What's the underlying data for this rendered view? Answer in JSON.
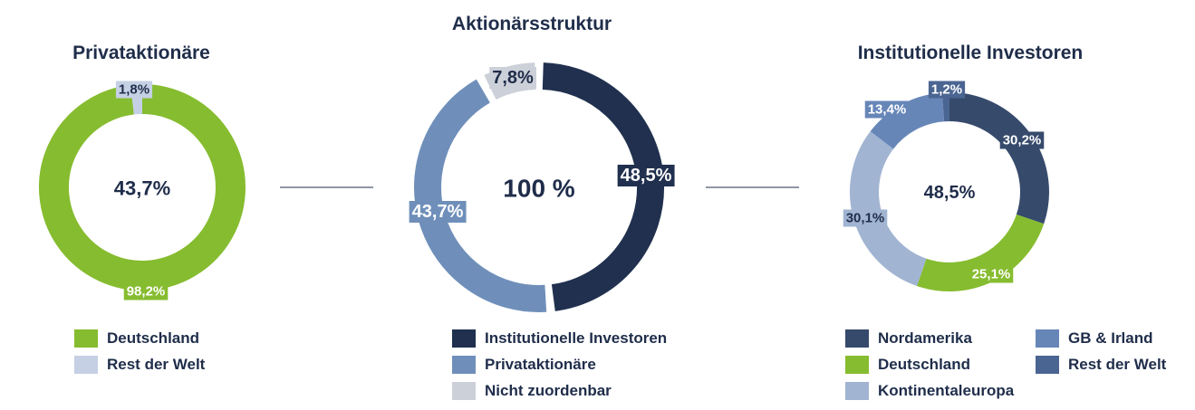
{
  "colors": {
    "navy": "#20304e",
    "green": "#86bc2f",
    "mid_blue": "#6f8fba",
    "light_gray": "#ccd0d8",
    "pale_blue": "#c5d0e4",
    "slate": "#364a6c",
    "light_blue": "#a1b4d2",
    "steel_blue": "#6786b8",
    "dark_steel": "#4b6592",
    "text": "#1f2d4a"
  },
  "chart_data": [
    {
      "id": "left",
      "type": "pie",
      "title": "Privataktionäre",
      "center": "43,7%",
      "series": [
        {
          "name": "Deutschland",
          "value": 98.2,
          "label": "98,2%",
          "color": "#86bc2f"
        },
        {
          "name": "Rest der Welt",
          "value": 1.8,
          "label": "1,8%",
          "color": "#c5d0e4"
        }
      ]
    },
    {
      "id": "middle",
      "type": "pie",
      "title": "Aktionärsstruktur",
      "center": "100 %",
      "series": [
        {
          "name": "Institutionelle Investoren",
          "value": 48.5,
          "label": "48,5%",
          "color": "#20304e"
        },
        {
          "name": "Privataktionäre",
          "value": 43.7,
          "label": "43,7%",
          "color": "#6f8fba"
        },
        {
          "name": "Nicht zuordenbar",
          "value": 7.8,
          "label": "7,8%",
          "color": "#ccd0d8"
        }
      ]
    },
    {
      "id": "right",
      "type": "pie",
      "title": "Institutionelle Investoren",
      "center": "48,5%",
      "series": [
        {
          "name": "Nordamerika",
          "value": 30.2,
          "label": "30,2%",
          "color": "#364a6c"
        },
        {
          "name": "Deutschland",
          "value": 25.1,
          "label": "25,1%",
          "color": "#86bc2f"
        },
        {
          "name": "Kontinentaleuropa",
          "value": 30.1,
          "label": "30,1%",
          "color": "#a1b4d2"
        },
        {
          "name": "GB & Irland",
          "value": 13.4,
          "label": "13,4%",
          "color": "#6786b8"
        },
        {
          "name": "Rest der Welt",
          "value": 1.2,
          "label": "1,2%",
          "color": "#4b6592"
        }
      ]
    }
  ],
  "legends": {
    "left": [
      {
        "label": "Deutschland",
        "color": "#86bc2f"
      },
      {
        "label": "Rest der Welt",
        "color": "#c5d0e4"
      }
    ],
    "middle": [
      {
        "label": "Institutionelle Investoren",
        "color": "#20304e"
      },
      {
        "label": "Privataktionäre",
        "color": "#6f8fba"
      },
      {
        "label": "Nicht zuordenbar",
        "color": "#ccd0d8"
      }
    ],
    "right": [
      {
        "label": "Nordamerika",
        "color": "#364a6c"
      },
      {
        "label": "GB & Irland",
        "color": "#6786b8"
      },
      {
        "label": "Deutschland",
        "color": "#86bc2f"
      },
      {
        "label": "Rest der Welt",
        "color": "#4b6592"
      },
      {
        "label": "Kontinentaleuropa",
        "color": "#a1b4d2"
      }
    ]
  }
}
